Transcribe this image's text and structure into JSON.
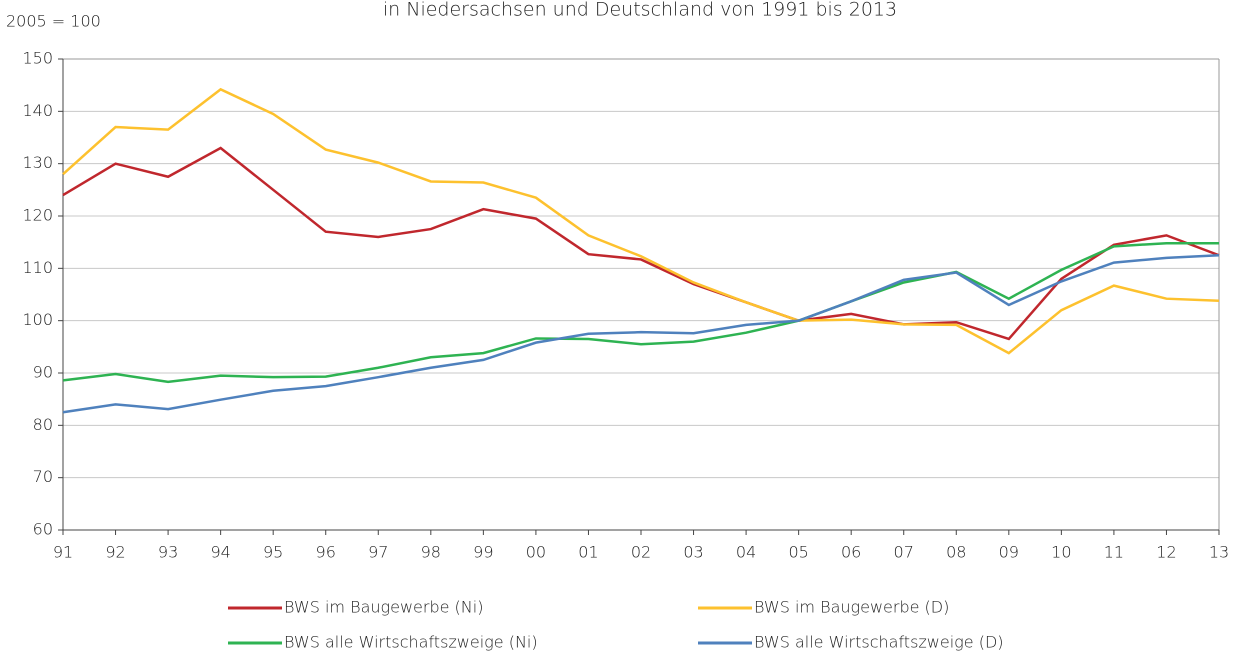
{
  "chart_data": {
    "type": "line",
    "title": "in Niedersachsen und Deutschland von 1991 bis 2013",
    "y_label": "2005 = 100",
    "categories": [
      "91",
      "92",
      "93",
      "94",
      "95",
      "96",
      "97",
      "98",
      "99",
      "00",
      "01",
      "02",
      "03",
      "04",
      "05",
      "06",
      "07",
      "08",
      "09",
      "10",
      "11",
      "12",
      "13"
    ],
    "ylim": [
      60,
      150
    ],
    "yticks": [
      60,
      70,
      80,
      90,
      100,
      110,
      120,
      130,
      140,
      150
    ],
    "grid": true,
    "series": [
      {
        "name": "BWS im Baugewerbe (Ni)",
        "color": "#c0272d",
        "values": [
          124,
          130,
          127.5,
          133,
          125,
          117,
          116,
          117.5,
          121.3,
          119.5,
          112.7,
          111.7,
          107,
          103.5,
          100,
          101.3,
          99.3,
          99.7,
          96.5,
          108,
          114.5,
          116.3,
          112.5
        ]
      },
      {
        "name": "BWS im Baugewerbe (D)",
        "color": "#fdc12e",
        "values": [
          128,
          137,
          136.5,
          144.2,
          139.5,
          132.7,
          130.2,
          126.6,
          126.4,
          123.5,
          116.3,
          112.3,
          107.3,
          103.5,
          100,
          100.2,
          99.3,
          99.2,
          93.8,
          102,
          106.7,
          104.2,
          103.8
        ]
      },
      {
        "name": "BWS alle Wirtschaftszweige (Ni)",
        "color": "#2eb352",
        "values": [
          88.6,
          89.8,
          88.3,
          89.5,
          89.2,
          89.3,
          91,
          93,
          93.8,
          96.6,
          96.5,
          95.5,
          96,
          97.7,
          100,
          103.7,
          107.3,
          109.3,
          104.2,
          109.7,
          114.2,
          114.8,
          114.8
        ]
      },
      {
        "name": "BWS alle Wirtschaftszweige (D)",
        "color": "#4f81bd",
        "values": [
          82.5,
          84,
          83.1,
          84.9,
          86.6,
          87.5,
          89.2,
          91,
          92.5,
          95.8,
          97.5,
          97.8,
          97.6,
          99.2,
          100,
          103.7,
          107.8,
          109.2,
          103,
          107.5,
          111.1,
          112,
          112.5
        ]
      }
    ]
  }
}
